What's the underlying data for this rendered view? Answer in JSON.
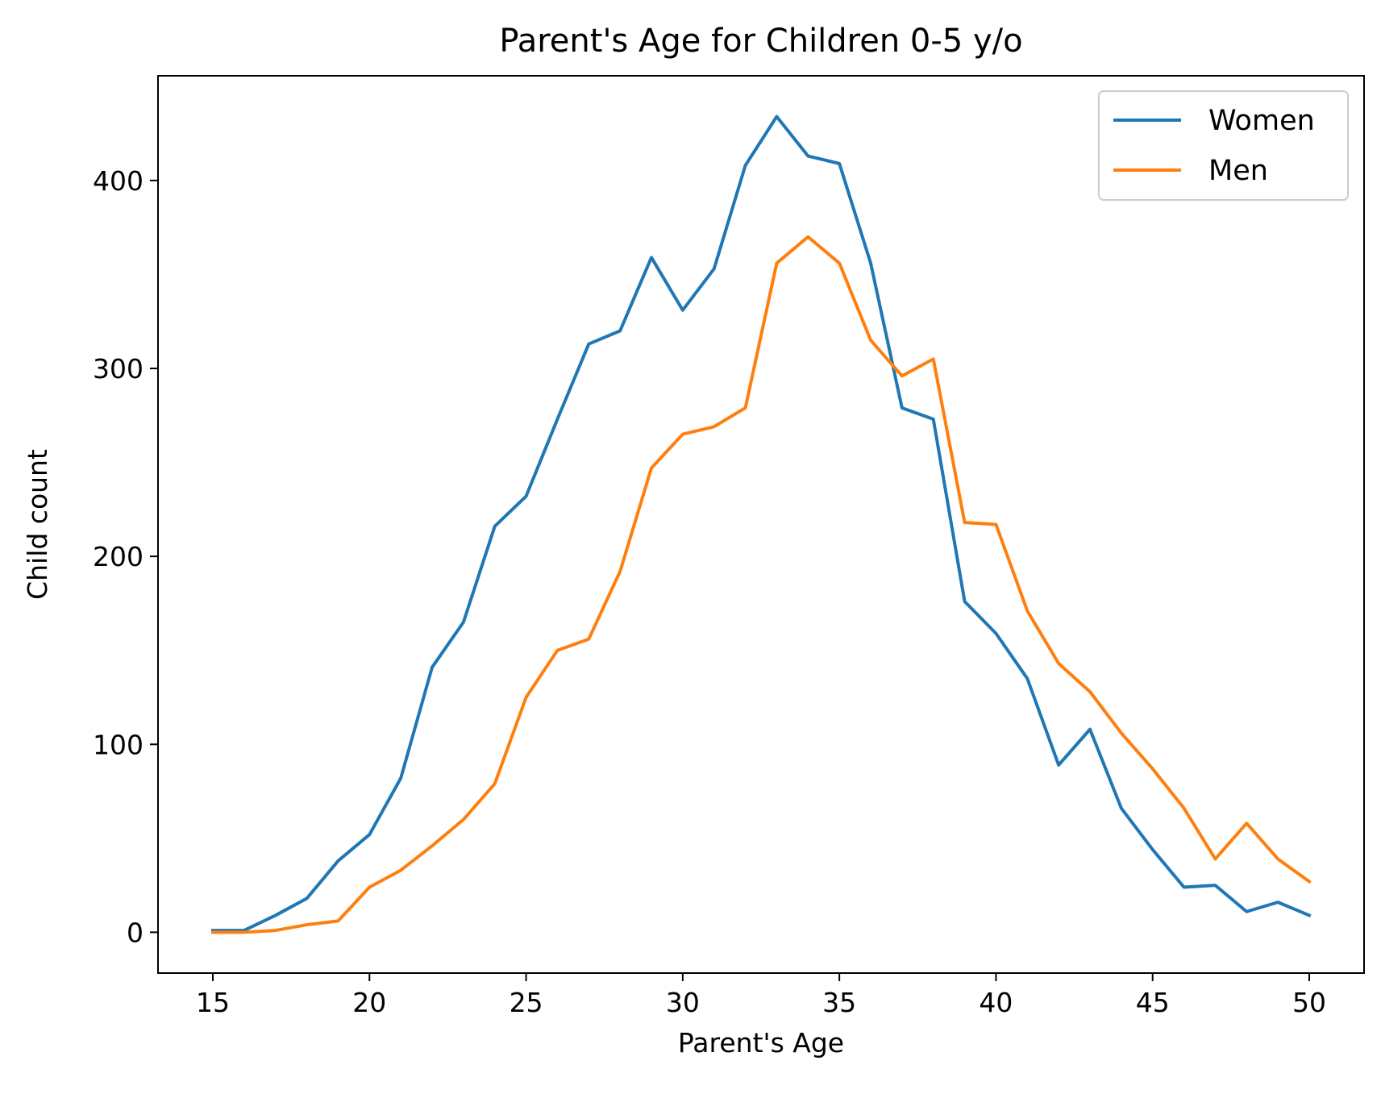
{
  "chart_data": {
    "type": "line",
    "title": "Parent's Age for Children 0-5 y/o",
    "xlabel": "Parent's Age",
    "ylabel": "Child count",
    "xlim": [
      13.25,
      51.75
    ],
    "ylim": [
      -21.7,
      455.7
    ],
    "xticks": [
      15,
      20,
      25,
      30,
      35,
      40,
      45,
      50
    ],
    "yticks": [
      0,
      100,
      200,
      300,
      400
    ],
    "grid": false,
    "legend": "top-right",
    "x": [
      15,
      16,
      17,
      18,
      19,
      20,
      21,
      22,
      23,
      24,
      25,
      26,
      27,
      28,
      29,
      30,
      31,
      32,
      33,
      34,
      35,
      36,
      37,
      38,
      39,
      40,
      41,
      42,
      43,
      44,
      45,
      46,
      47,
      48,
      49,
      50
    ],
    "series": [
      {
        "name": "Women",
        "color": "#1f77b4",
        "values": [
          1,
          1,
          9,
          18,
          38,
          52,
          82,
          141,
          165,
          216,
          232,
          273,
          313,
          320,
          359,
          331,
          353,
          408,
          434,
          413,
          409,
          356,
          279,
          273,
          176,
          159,
          135,
          89,
          108,
          66,
          44,
          24,
          25,
          11,
          16,
          9
        ]
      },
      {
        "name": "Men",
        "color": "#ff7f0e",
        "values": [
          0,
          0,
          1,
          4,
          6,
          24,
          33,
          46,
          60,
          79,
          125,
          150,
          156,
          192,
          247,
          265,
          269,
          279,
          356,
          370,
          356,
          315,
          296,
          305,
          218,
          217,
          171,
          143,
          128,
          106,
          87,
          66,
          39,
          58,
          39,
          27
        ]
      }
    ]
  }
}
